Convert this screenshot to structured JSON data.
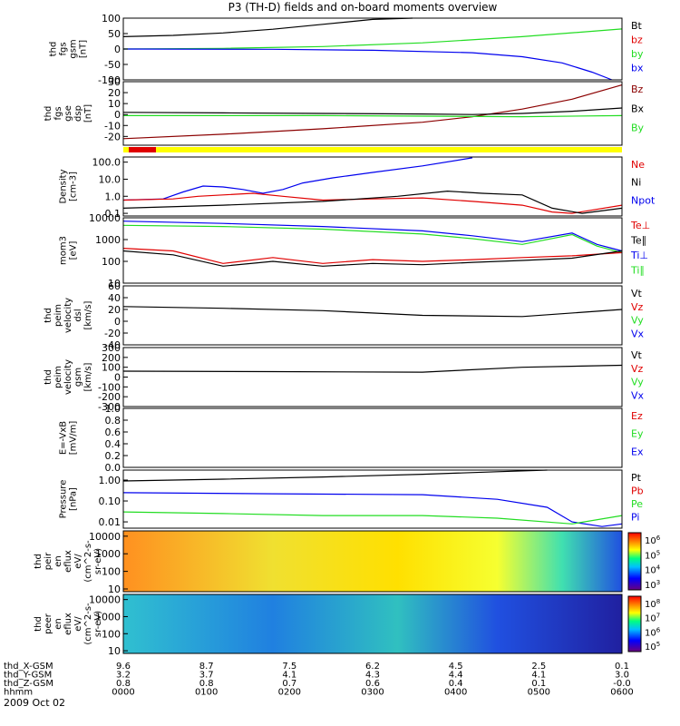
{
  "title": "P3 (TH-D) fields and on-board moments overview",
  "date_label": "2009 Oct 02",
  "colors": {
    "black": "#000000",
    "red": "#e00000",
    "green": "#22dd22",
    "blue": "#0000ee",
    "maroon": "#8b0000",
    "yellow": "#ffff00"
  },
  "chart_data": [
    {
      "id": "p1",
      "type": "line",
      "ylabel": [
        "thd",
        "fgs",
        "gsm",
        "[nT]"
      ],
      "yticks": [
        "100",
        "50",
        "0",
        "-50",
        "-100"
      ],
      "ylim": [
        -100,
        100
      ],
      "scale": "linear",
      "legend": [
        {
          "text": "Bt",
          "color": "#000000"
        },
        {
          "text": "bz",
          "color": "#e00000"
        },
        {
          "text": "by",
          "color": "#22dd22"
        },
        {
          "text": "bx",
          "color": "#0000ee"
        }
      ],
      "series": [
        {
          "name": "Bt",
          "color": "#000000",
          "x": [
            0,
            0.1,
            0.2,
            0.3,
            0.4,
            0.5,
            0.58
          ],
          "y": [
            40,
            44,
            52,
            64,
            80,
            96,
            110
          ]
        },
        {
          "name": "by",
          "color": "#22dd22",
          "x": [
            0,
            0.2,
            0.4,
            0.6,
            0.8,
            1.0
          ],
          "y": [
            0,
            2,
            8,
            20,
            40,
            65
          ]
        },
        {
          "name": "bx",
          "color": "#0000ee",
          "x": [
            0,
            0.3,
            0.5,
            0.7,
            0.8,
            0.88,
            0.94,
            0.98
          ],
          "y": [
            0,
            -1,
            -4,
            -12,
            -25,
            -45,
            -75,
            -100
          ]
        }
      ]
    },
    {
      "id": "p2",
      "type": "line",
      "ylabel": [
        "thd",
        "fgs",
        "gse",
        "dsp",
        "[nT]"
      ],
      "yticks": [
        "30",
        "20",
        "10",
        "0",
        "-10",
        "-20"
      ],
      "ylim": [
        -28,
        30
      ],
      "scale": "linear",
      "legend": [
        {
          "text": "Bz",
          "color": "#8b0000"
        },
        {
          "text": "Bx",
          "color": "#000000"
        },
        {
          "text": "By",
          "color": "#22dd22"
        }
      ],
      "series": [
        {
          "name": "Bz",
          "color": "#8b0000",
          "x": [
            0,
            0.2,
            0.4,
            0.6,
            0.7,
            0.8,
            0.9,
            1.0
          ],
          "y": [
            -22,
            -18,
            -13,
            -7,
            -2,
            5,
            14,
            27
          ]
        },
        {
          "name": "Bx",
          "color": "#000000",
          "x": [
            0,
            0.2,
            0.4,
            0.6,
            0.7,
            0.8,
            0.9,
            1.0
          ],
          "y": [
            2,
            1.5,
            1,
            0.5,
            0,
            1,
            3,
            6
          ]
        },
        {
          "name": "By",
          "color": "#22dd22",
          "x": [
            0,
            0.2,
            0.4,
            0.6,
            0.8,
            1.0
          ],
          "y": [
            -1,
            -1,
            -1,
            -1.5,
            -2,
            -1
          ]
        }
      ]
    },
    {
      "id": "p3",
      "type": "line",
      "ylabel": [
        "Density",
        "[cm-3]"
      ],
      "yticks": [
        "100.0",
        "10.0",
        "1.0",
        "0.1"
      ],
      "ylim": [
        0.07,
        200
      ],
      "scale": "log",
      "legend": [
        {
          "text": "Ne",
          "color": "#e00000"
        },
        {
          "text": "Ni",
          "color": "#000000"
        },
        {
          "text": "Npot",
          "color": "#0000ee"
        }
      ],
      "series": [
        {
          "name": "Npot",
          "color": "#0000ee",
          "x": [
            0,
            0.08,
            0.12,
            0.16,
            0.2,
            0.24,
            0.28,
            0.32,
            0.36,
            0.42,
            0.5,
            0.6,
            0.7
          ],
          "y": [
            0.6,
            0.7,
            1.8,
            4,
            3.5,
            2.5,
            1.5,
            2.5,
            6,
            12,
            25,
            60,
            180
          ]
        },
        {
          "name": "Ne",
          "color": "#e00000",
          "x": [
            0,
            0.1,
            0.15,
            0.2,
            0.26,
            0.32,
            0.4,
            0.5,
            0.6,
            0.7,
            0.8,
            0.86,
            0.9,
            1.0
          ],
          "y": [
            0.6,
            0.7,
            1.0,
            1.2,
            1.5,
            1.0,
            0.6,
            0.7,
            0.8,
            0.5,
            0.3,
            0.12,
            0.1,
            0.3
          ]
        },
        {
          "name": "Ni",
          "color": "#000000",
          "x": [
            0,
            0.2,
            0.4,
            0.55,
            0.65,
            0.72,
            0.8,
            0.86,
            0.92,
            1.0
          ],
          "y": [
            0.2,
            0.3,
            0.5,
            1.0,
            2.0,
            1.5,
            1.2,
            0.2,
            0.1,
            0.2
          ]
        }
      ]
    },
    {
      "id": "p4",
      "type": "line",
      "ylabel": [
        "mom3",
        "[eV]"
      ],
      "yticks": [
        "10000",
        "1000",
        "100",
        "10"
      ],
      "ylim": [
        10,
        10000
      ],
      "scale": "log",
      "legend": [
        {
          "text": "Te⊥",
          "color": "#e00000"
        },
        {
          "text": "Te∥",
          "color": "#000000"
        },
        {
          "text": "Ti⊥",
          "color": "#0000ee"
        },
        {
          "text": "Ti∥",
          "color": "#22dd22"
        }
      ],
      "series": [
        {
          "name": "Ti⊥",
          "color": "#0000ee",
          "x": [
            0,
            0.2,
            0.4,
            0.6,
            0.7,
            0.8,
            0.9,
            0.95,
            1.0
          ],
          "y": [
            7000,
            5500,
            4000,
            2500,
            1500,
            800,
            2000,
            600,
            300
          ]
        },
        {
          "name": "Ti∥",
          "color": "#22dd22",
          "x": [
            0,
            0.2,
            0.4,
            0.6,
            0.7,
            0.8,
            0.9,
            0.95,
            1.0
          ],
          "y": [
            4500,
            4000,
            3000,
            1800,
            1100,
            600,
            1700,
            500,
            250
          ]
        },
        {
          "name": "Te⊥",
          "color": "#e00000",
          "x": [
            0,
            0.1,
            0.2,
            0.3,
            0.4,
            0.5,
            0.6,
            0.7,
            0.8,
            0.9,
            1.0
          ],
          "y": [
            400,
            300,
            80,
            150,
            80,
            120,
            100,
            120,
            150,
            180,
            250
          ]
        },
        {
          "name": "Te∥",
          "color": "#000000",
          "x": [
            0,
            0.1,
            0.2,
            0.3,
            0.4,
            0.5,
            0.6,
            0.7,
            0.8,
            0.9,
            1.0
          ],
          "y": [
            300,
            200,
            60,
            100,
            60,
            80,
            70,
            90,
            110,
            140,
            300
          ]
        }
      ]
    },
    {
      "id": "p5",
      "type": "line",
      "ylabel": [
        "thd",
        "peim",
        "velocity",
        "dsl",
        "[km/s]"
      ],
      "yticks": [
        "60",
        "40",
        "20",
        "0",
        "-20",
        "-40"
      ],
      "ylim": [
        -40,
        60
      ],
      "scale": "linear",
      "legend": [
        {
          "text": "Vt",
          "color": "#000000"
        },
        {
          "text": "Vz",
          "color": "#e00000"
        },
        {
          "text": "Vy",
          "color": "#22dd22"
        },
        {
          "text": "Vx",
          "color": "#0000ee"
        }
      ],
      "series": [
        {
          "name": "Vt",
          "color": "#000000",
          "x": [
            0,
            0.2,
            0.4,
            0.6,
            0.8,
            1.0
          ],
          "y": [
            25,
            22,
            18,
            10,
            8,
            20
          ]
        }
      ]
    },
    {
      "id": "p6",
      "type": "line",
      "ylabel": [
        "thd",
        "peim",
        "velocity",
        "gsm",
        "[km/s]"
      ],
      "yticks": [
        "300",
        "200",
        "100",
        "0",
        "-100",
        "-200",
        "-300"
      ],
      "ylim": [
        -300,
        300
      ],
      "scale": "linear",
      "legend": [
        {
          "text": "Vt",
          "color": "#000000"
        },
        {
          "text": "Vz",
          "color": "#e00000"
        },
        {
          "text": "Vy",
          "color": "#22dd22"
        },
        {
          "text": "Vx",
          "color": "#0000ee"
        }
      ],
      "series": [
        {
          "name": "Vt",
          "color": "#000000",
          "x": [
            0,
            0.3,
            0.6,
            0.8,
            1.0
          ],
          "y": [
            60,
            55,
            50,
            100,
            120
          ]
        }
      ]
    },
    {
      "id": "p7",
      "type": "line",
      "ylabel": [
        "E=-VxB",
        "[mV/m]"
      ],
      "yticks": [
        "1.0",
        "0.8",
        "0.6",
        "0.4",
        "0.2",
        "0.0"
      ],
      "ylim": [
        0,
        1
      ],
      "scale": "linear",
      "legend": [
        {
          "text": "Ez",
          "color": "#e00000"
        },
        {
          "text": "Ey",
          "color": "#22dd22"
        },
        {
          "text": "Ex",
          "color": "#0000ee"
        }
      ],
      "series": []
    },
    {
      "id": "p8",
      "type": "line",
      "ylabel": [
        "Pressure",
        "[nPa]"
      ],
      "yticks": [
        "1.00",
        "0.10",
        "0.01"
      ],
      "ylim": [
        0.005,
        3
      ],
      "scale": "log",
      "legend": [
        {
          "text": "Pt",
          "color": "#000000"
        },
        {
          "text": "Pb",
          "color": "#e00000"
        },
        {
          "text": "Pe",
          "color": "#22dd22"
        },
        {
          "text": "Pi",
          "color": "#0000ee"
        }
      ],
      "series": [
        {
          "name": "Pt",
          "color": "#000000",
          "x": [
            0,
            0.2,
            0.4,
            0.6,
            0.75,
            0.85
          ],
          "y": [
            0.9,
            1.1,
            1.4,
            1.9,
            2.5,
            3.0
          ]
        },
        {
          "name": "Pi",
          "color": "#0000ee",
          "x": [
            0,
            0.3,
            0.6,
            0.75,
            0.85,
            0.9,
            0.96,
            1.0
          ],
          "y": [
            0.25,
            0.22,
            0.2,
            0.12,
            0.05,
            0.01,
            0.006,
            0.008
          ]
        },
        {
          "name": "Pe",
          "color": "#22dd22",
          "x": [
            0,
            0.2,
            0.4,
            0.6,
            0.75,
            0.9,
            1.0
          ],
          "y": [
            0.03,
            0.025,
            0.02,
            0.02,
            0.015,
            0.008,
            0.02
          ]
        }
      ]
    },
    {
      "id": "p9",
      "type": "heatmap",
      "ylabel": [
        "thd",
        "peir",
        "en",
        "eflux",
        "eV/",
        "(cm^2-s-",
        "sr-eV)"
      ],
      "yticks": [
        "10000",
        "1000",
        "100",
        "10"
      ],
      "ylim": [
        7,
        20000
      ],
      "scale": "log",
      "colorbar_ticks": [
        "10^6",
        "10^5",
        "10^4",
        "10^3"
      ]
    },
    {
      "id": "p10",
      "type": "heatmap",
      "ylabel": [
        "thd",
        "peer",
        "en",
        "eflux",
        "eV/",
        "(cm^2-s-",
        "sr-eV)"
      ],
      "yticks": [
        "10000",
        "1000",
        "100",
        "10"
      ],
      "ylim": [
        7,
        20000
      ],
      "scale": "log",
      "colorbar_ticks": [
        "10^8",
        "10^7",
        "10^6",
        "10^5"
      ]
    }
  ],
  "x_axis": {
    "rows": [
      {
        "label": "thd_X-GSM",
        "values": [
          "9.6",
          "8.7",
          "7.5",
          "6.2",
          "4.5",
          "2.5",
          "0.1"
        ]
      },
      {
        "label": "thd_Y-GSM",
        "values": [
          "3.2",
          "3.7",
          "4.1",
          "4.3",
          "4.4",
          "4.1",
          "3.0"
        ]
      },
      {
        "label": "thd_Z-GSM",
        "values": [
          "0.8",
          "0.8",
          "0.7",
          "0.6",
          "0.4",
          "0.1",
          "-0.0"
        ]
      },
      {
        "label": "hhmm",
        "values": [
          "0000",
          "0100",
          "0200",
          "0300",
          "0400",
          "0500",
          "0600"
        ]
      }
    ]
  }
}
